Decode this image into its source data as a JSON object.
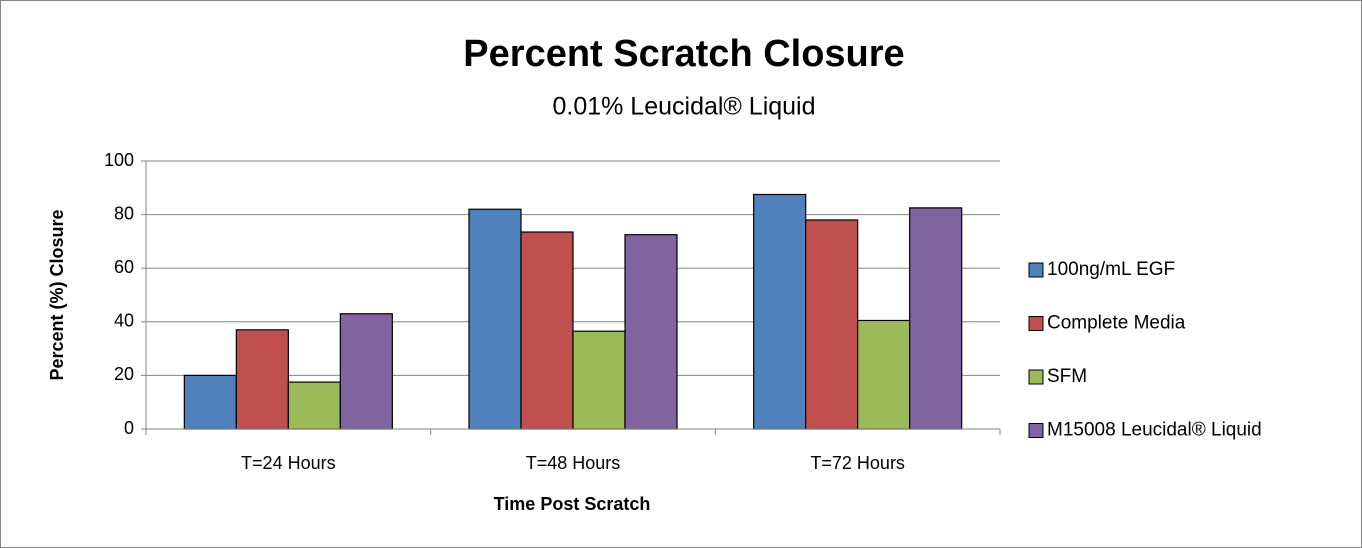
{
  "chart_data": {
    "type": "bar",
    "title": "Percent Scratch Closure",
    "subtitle": "0.01% Leucidal® Liquid",
    "x_label": "Time Post Scratch",
    "y_label": "Percent (%) Closure",
    "categories": [
      "T=24 Hours",
      "T=48 Hours",
      "T=72 Hours"
    ],
    "series": [
      {
        "name": "100ng/mL EGF",
        "color": "#4f81bd",
        "values": [
          20,
          82,
          87.5
        ]
      },
      {
        "name": "Complete Media",
        "color": "#c0504d",
        "values": [
          37,
          73.5,
          78
        ]
      },
      {
        "name": "SFM",
        "color": "#9bbb59",
        "values": [
          17.5,
          36.5,
          40.5
        ]
      },
      {
        "name": "M15008 Leucidal® Liquid",
        "color": "#8064a2",
        "values": [
          43,
          72.5,
          82.5
        ]
      }
    ],
    "ylim": [
      0,
      100
    ],
    "yticks": [
      0,
      20,
      40,
      60,
      80,
      100
    ],
    "grid": true,
    "legend": "right"
  }
}
